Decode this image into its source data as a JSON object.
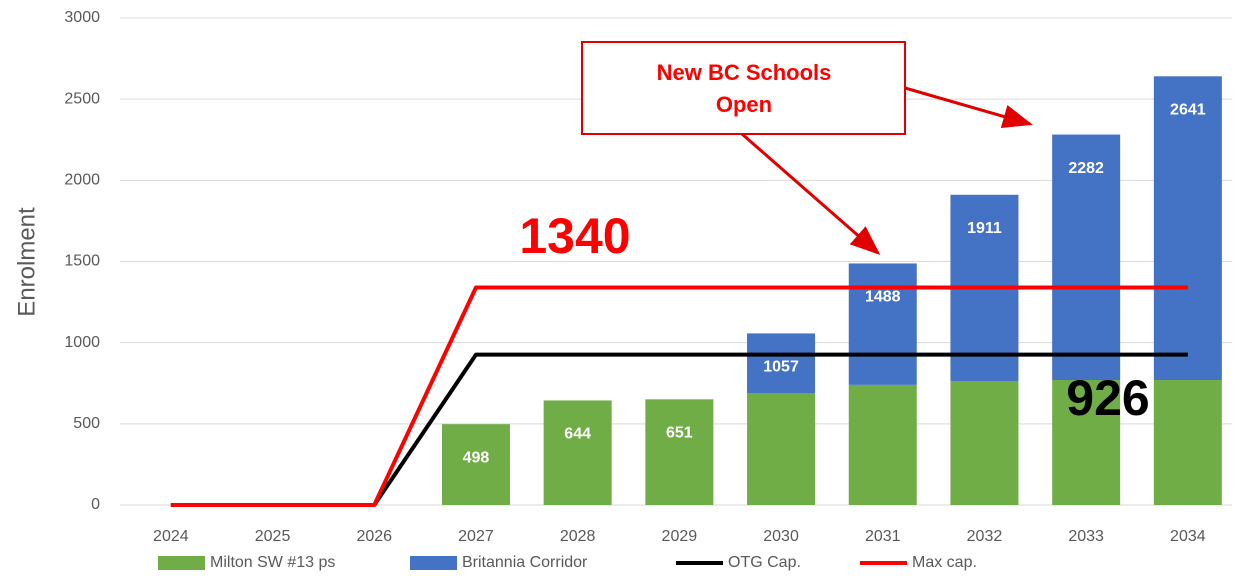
{
  "chart_data": {
    "type": "bar",
    "ylabel": "Enrolment",
    "categories": [
      "2024",
      "2025",
      "2026",
      "2027",
      "2028",
      "2029",
      "2030",
      "2031",
      "2032",
      "2033",
      "2034"
    ],
    "series": [
      {
        "name": "Milton SW #13 ps",
        "type": "bar",
        "color": "#70ad47",
        "values": [
          0,
          0,
          0,
          498,
          644,
          651,
          690,
          740,
          764,
          770,
          770
        ]
      },
      {
        "name": "Britannia Corridor",
        "type": "bar",
        "color": "#4472c4",
        "values": [
          0,
          0,
          0,
          0,
          0,
          0,
          367,
          748,
          1147,
          1512,
          1871
        ]
      },
      {
        "name": "OTG Cap.",
        "type": "line",
        "color": "#000000",
        "values": [
          0,
          0,
          0,
          926,
          926,
          926,
          926,
          926,
          926,
          926,
          926
        ]
      },
      {
        "name": "Max cap.",
        "type": "line",
        "color": "#ff0000",
        "values": [
          0,
          0,
          0,
          1340,
          1340,
          1340,
          1340,
          1340,
          1340,
          1340,
          1340
        ]
      }
    ],
    "totals": [
      null,
      null,
      null,
      498,
      644,
      651,
      1057,
      1488,
      1911,
      2282,
      2641
    ],
    "ylim": [
      0,
      3000
    ],
    "yticks": [
      0,
      500,
      1000,
      1500,
      2000,
      2500,
      3000
    ],
    "grid": true,
    "legend": "bottom",
    "annotations": [
      "1340",
      "926"
    ],
    "callout": [
      "New BC Schools",
      "Open"
    ]
  }
}
